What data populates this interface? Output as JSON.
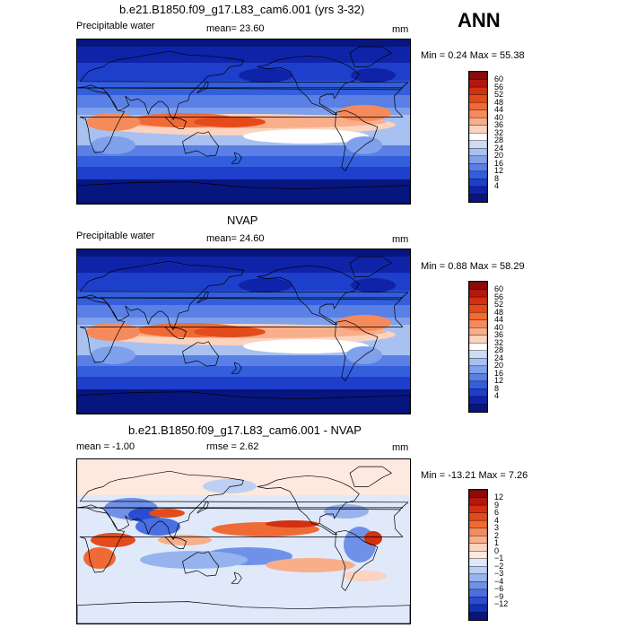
{
  "season": "ANN",
  "panels": [
    {
      "title": "b.e21.B1850.f09_g17.L83_cam6.001 (yrs 3-32)",
      "left_label": "Precipitable water",
      "mean_text": "mean=  23.60",
      "unit": "mm",
      "minmax": "Min =   0.24 Max =  55.38",
      "levels": [
        "60",
        "56",
        "52",
        "48",
        "44",
        "40",
        "36",
        "32",
        "28",
        "24",
        "20",
        "16",
        "12",
        "8",
        "4"
      ]
    },
    {
      "title": "NVAP",
      "left_label": "Precipitable water",
      "mean_text": "mean=  24.60",
      "unit": "mm",
      "minmax": "Min =   0.88 Max =  58.29",
      "levels": [
        "60",
        "56",
        "52",
        "48",
        "44",
        "40",
        "36",
        "32",
        "28",
        "24",
        "20",
        "16",
        "12",
        "8",
        "4"
      ]
    },
    {
      "title": "b.e21.B1850.f09_g17.L83_cam6.001 - NVAP",
      "left_label": "mean =  -1.00",
      "mean_text": "rmse =   2.62",
      "unit": "mm",
      "minmax": "Min = -13.21 Max =   7.26",
      "levels": [
        "12",
        "9",
        "6",
        "4",
        "3",
        "2",
        "1",
        "0",
        "−1",
        "−2",
        "−3",
        "−4",
        "−6",
        "−9",
        "−12"
      ]
    }
  ],
  "colors": {
    "abs_scale": [
      "#8b0a0a",
      "#b3170e",
      "#d2300f",
      "#e44b1a",
      "#f06a36",
      "#f58b5c",
      "#f9ae8a",
      "#fcd3bf",
      "#ffffff",
      "#cfdcf6",
      "#a8c1f0",
      "#7fa0eb",
      "#5a80e6",
      "#335fdd",
      "#1d3fcb",
      "#0f23a8",
      "#07157e"
    ],
    "diff_scale": [
      "#8b0a0a",
      "#b3170e",
      "#d2300f",
      "#e44b1a",
      "#f06a36",
      "#f58b5c",
      "#f9ae8a",
      "#fcd3bf",
      "#fde9df",
      "#dfe9fa",
      "#bcd0f4",
      "#96b3ee",
      "#6f91e8",
      "#4a6fe0",
      "#2b4bd2",
      "#1330b4",
      "#07157e"
    ]
  },
  "chart_data": [
    {
      "type": "heatmap",
      "title": "b.e21.B1850.f09_g17.L83_cam6.001 (yrs 3-32)",
      "field": "Precipitable water",
      "unit": "mm",
      "mean": 23.6,
      "min": 0.24,
      "max": 55.38,
      "contour_levels": [
        4,
        8,
        12,
        16,
        20,
        24,
        28,
        32,
        36,
        40,
        44,
        48,
        52,
        56,
        60
      ]
    },
    {
      "type": "heatmap",
      "title": "NVAP",
      "field": "Precipitable water",
      "unit": "mm",
      "mean": 24.6,
      "min": 0.88,
      "max": 58.29,
      "contour_levels": [
        4,
        8,
        12,
        16,
        20,
        24,
        28,
        32,
        36,
        40,
        44,
        48,
        52,
        56,
        60
      ]
    },
    {
      "type": "heatmap",
      "title": "b.e21.B1850.f09_g17.L83_cam6.001 - NVAP",
      "unit": "mm",
      "mean": -1.0,
      "rmse": 2.62,
      "min": -13.21,
      "max": 7.26,
      "contour_levels": [
        -12,
        -9,
        -6,
        -4,
        -3,
        -2,
        -1,
        0,
        1,
        2,
        3,
        4,
        6,
        9,
        12
      ]
    }
  ]
}
